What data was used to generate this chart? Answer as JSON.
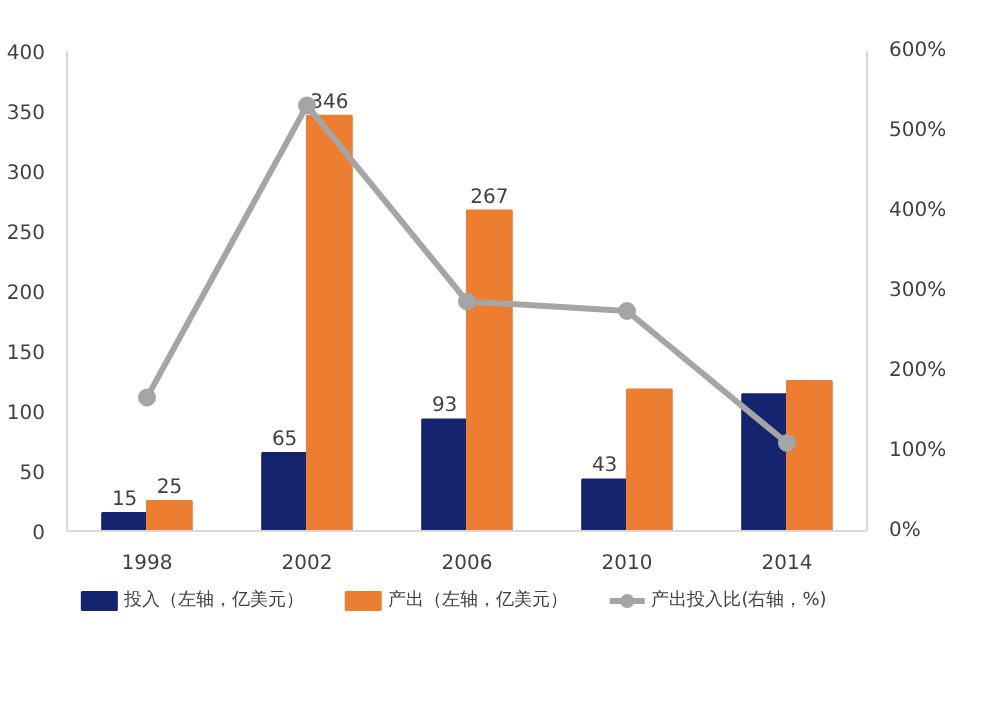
{
  "chart_data": {
    "type": "bar",
    "categories": [
      "1998",
      "2002",
      "2006",
      "2010",
      "2014"
    ],
    "series": [
      {
        "name": "投入（左轴，亿美元）",
        "color": "#14246e",
        "values": [
          15,
          65,
          93,
          43,
          114
        ],
        "value_labels": [
          "15",
          "65",
          "93",
          "43",
          null
        ]
      },
      {
        "name": "产出（左轴，亿美元）",
        "color": "#ed7d31",
        "values": [
          25,
          346,
          267,
          118,
          125
        ],
        "value_labels": [
          "25",
          "346",
          "267",
          null,
          null
        ]
      },
      {
        "name": "产出投入比(右轴，%)",
        "type": "line",
        "axis": "y2",
        "color": "#a5a5a5",
        "marker": "circle",
        "values": [
          167,
          532,
          287,
          275,
          110
        ]
      }
    ],
    "ylim": [
      0,
      400
    ],
    "yticks": [
      0,
      50,
      100,
      150,
      200,
      250,
      300,
      350,
      400
    ],
    "y2lim": [
      0,
      600
    ],
    "y2ticks": [
      {
        "value": 0,
        "label": "0%"
      },
      {
        "value": 100,
        "label": "100%"
      },
      {
        "value": 200,
        "label": "200%"
      },
      {
        "value": 300,
        "label": "300%"
      },
      {
        "value": 400,
        "label": "400%"
      },
      {
        "value": 500,
        "label": "500%"
      },
      {
        "value": 600,
        "label": "600%"
      }
    ],
    "grid": false,
    "legend": "bottom"
  }
}
